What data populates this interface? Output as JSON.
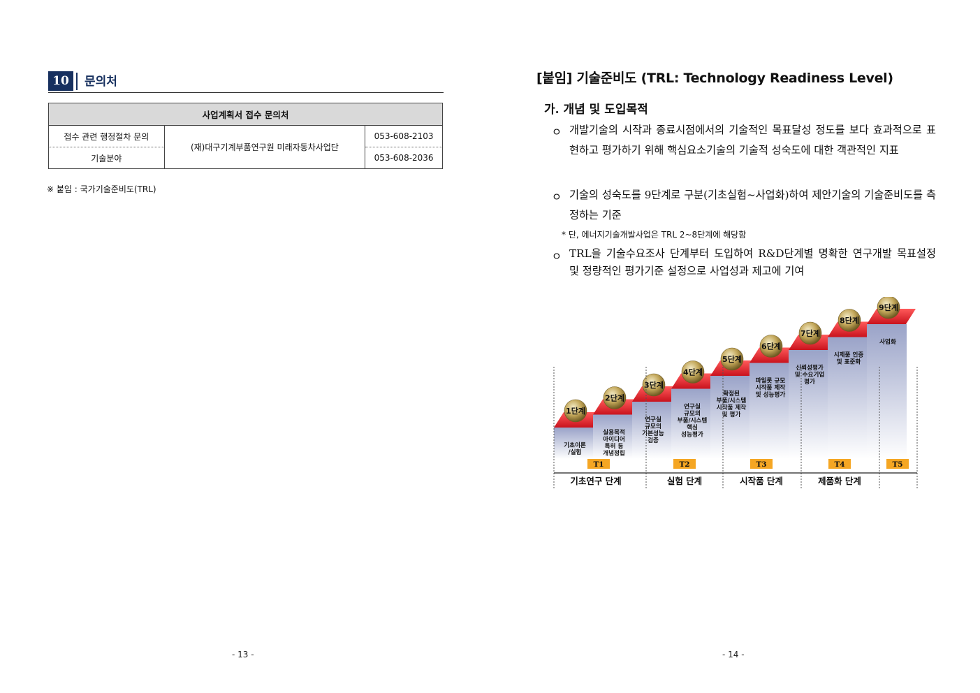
{
  "left_page": {
    "section": {
      "number": "10",
      "title": "문의처"
    },
    "table": {
      "header": "사업계획서 접수 문의처",
      "rows": [
        {
          "category": "접수 관련 행정절차 문의",
          "phone": "053-608-2103"
        },
        {
          "category": "기술분야",
          "phone": "053-608-2036"
        }
      ],
      "organization": "(재)대구기계부품연구원 미래자동차사업단"
    },
    "note": "※ 붙임 : 국가기술준비도(TRL)",
    "page_number": "- 13 -"
  },
  "right_page": {
    "title": "[붙임] 기술준비도 (TRL: Technology Readiness Level)",
    "subtitle": "가. 개념 및 도입목적",
    "bullet_symbol": "ㅇ",
    "bullets": [
      "개발기술의 시작과 종료시점에서의 기술적인 목표달성 정도를 보다 효과적으로 표현하고 평가하기 위해 핵심요소기술의 기술적 성숙도에 대한 객관적인 지표",
      "기술의 성숙도를 9단계로 구분(기초실험~사업화)하여 제안기술의 기술준비도를 측정하는 기준",
      "TRL을 기술수요조사 단계부터 도입하여 R&D단계별 명확한 연구개발 목표설정 및 정량적인 평가기준 설정으로 사업성과 제고에 기여"
    ],
    "footnote": "* 단, 에너지기술개발사업은 TRL 2~8단계에 해당함",
    "page_number": "- 14 -",
    "diagram": {
      "steps": [
        {
          "label": "1단계",
          "desc": [
            "기초이론",
            "/실험"
          ]
        },
        {
          "label": "2단계",
          "desc": [
            "실용목적",
            "아이디어",
            "특허 등",
            "개념정립"
          ]
        },
        {
          "label": "3단계",
          "desc": [
            "연구실",
            "규모의",
            "기본성능",
            "검증"
          ]
        },
        {
          "label": "4단계",
          "desc": [
            "연구실",
            "규모의",
            "부품/시스템",
            "핵심",
            "성능평가"
          ]
        },
        {
          "label": "5단계",
          "desc": [
            "확정된",
            "부품/시스템",
            "시작품 제작",
            "및 평가"
          ]
        },
        {
          "label": "6단계",
          "desc": [
            "파일롯 규모",
            "시작품 제작",
            "및 성능평가"
          ]
        },
        {
          "label": "7단계",
          "desc": [
            "신뢰성평가",
            "및 수요기업",
            "평가"
          ]
        },
        {
          "label": "8단계",
          "desc": [
            "시제품 인증",
            "및 표준화"
          ]
        },
        {
          "label": "9단계",
          "desc": [
            "사업화"
          ]
        }
      ],
      "t_labels": [
        "T1",
        "T2",
        "T3",
        "T4",
        "T5"
      ],
      "phases": [
        "기초연구 단계",
        "실험 단계",
        "시작품 단계",
        "제품화 단계"
      ],
      "colors": {
        "stair_red": "#e8242f",
        "stair_side": "#9aa3c8",
        "ball": "#b39a4a",
        "t_box": "#f5a623"
      }
    }
  }
}
